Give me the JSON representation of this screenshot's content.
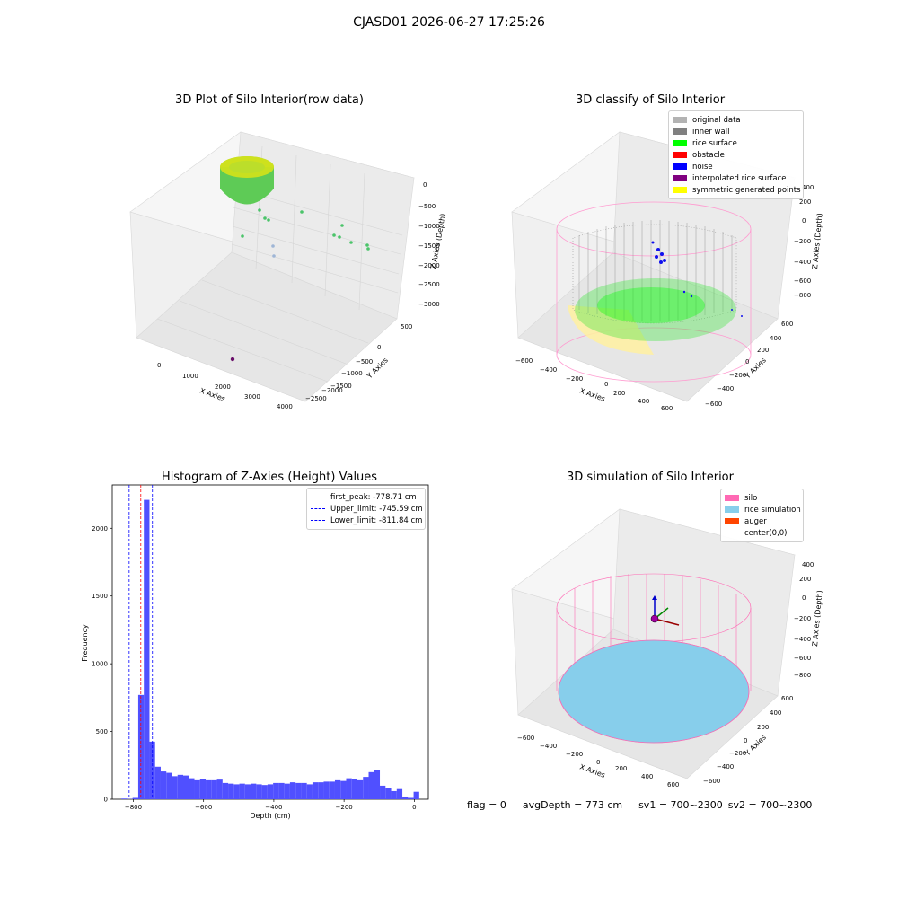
{
  "suptitle": "CJASD01 2026-06-27 17:25:26",
  "footer": {
    "flag": "flag = 0",
    "avg": "avgDepth = 773 cm",
    "sv1": "sv1 = 700~2300",
    "sv2": "sv2 = 700~2300"
  },
  "panels": {
    "raw": {
      "title": "3D Plot of Silo Interior(row data)",
      "xlabel": "X Axies",
      "ylabel": "Y Axies",
      "zlabel": "Z Axies (Depth)",
      "xticks": [
        "0",
        "1000",
        "2000",
        "3000",
        "4000"
      ],
      "yticks": [
        "500",
        "0",
        "−500",
        "−1000",
        "−1500",
        "−2000",
        "−2500"
      ],
      "zticks": [
        "0",
        "−500",
        "−1000",
        "−1500",
        "−2000",
        "−2500",
        "−3000"
      ]
    },
    "classify": {
      "title": "3D classify of Silo Interior",
      "xlabel": "X Axies",
      "ylabel": "Y Axies",
      "zlabel": "Z Axies (Depth)",
      "xticks": [
        "−600",
        "−400",
        "−200",
        "0",
        "200",
        "400",
        "600"
      ],
      "yticks": [
        "600",
        "400",
        "200",
        "0",
        "−200",
        "−400",
        "−600"
      ],
      "zticks": [
        "400",
        "200",
        "0",
        "−200",
        "−400",
        "−600",
        "−800"
      ],
      "legend": [
        {
          "label": "original data",
          "color": "#b3b3b3"
        },
        {
          "label": "inner wall",
          "color": "#808080"
        },
        {
          "label": "rice surface",
          "color": "#00ff00"
        },
        {
          "label": "obstacle",
          "color": "#ff0000"
        },
        {
          "label": "noise",
          "color": "#0000ff"
        },
        {
          "label": "interpolated rice surface",
          "color": "#800080"
        },
        {
          "label": "symmetric generated points",
          "color": "#ffff00"
        }
      ]
    },
    "simulation": {
      "title": "3D simulation of Silo Interior",
      "xlabel": "X Axies",
      "ylabel": "Y Axies",
      "zlabel": "Z Axies (Depth)",
      "xticks": [
        "−600",
        "−400",
        "−200",
        "0",
        "200",
        "400",
        "600"
      ],
      "yticks": [
        "600",
        "400",
        "200",
        "0",
        "−200",
        "−400",
        "−600"
      ],
      "zticks": [
        "400",
        "200",
        "0",
        "−200",
        "−400",
        "−600",
        "−800"
      ],
      "legend": [
        {
          "label": "silo",
          "color": "#ff69b4"
        },
        {
          "label": "rice simulation",
          "color": "#87ceeb"
        },
        {
          "label": "auger",
          "color": "#ff4500"
        },
        {
          "label": "center(0,0)",
          "color": ""
        }
      ]
    }
  },
  "chart_data": {
    "type": "bar",
    "title": "Histogram of Z-Axies (Height) Values",
    "xlabel": "Depth (cm)",
    "ylabel": "Frequency",
    "xlim": [
      -860,
      40
    ],
    "ylim": [
      0,
      2320
    ],
    "xticks": [
      -800,
      -600,
      -400,
      -200,
      0
    ],
    "yticks": [
      0,
      500,
      1000,
      1500,
      2000
    ],
    "bar_color": "#5050ff",
    "bin_width": 16,
    "bins_start": [
      -834,
      -818,
      -802,
      -786,
      -770,
      -754,
      -738,
      -722,
      -706,
      -690,
      -674,
      -658,
      -642,
      -626,
      -610,
      -594,
      -578,
      -562,
      -546,
      -530,
      -514,
      -498,
      -482,
      -466,
      -450,
      -434,
      -418,
      -402,
      -386,
      -370,
      -354,
      -338,
      -322,
      -306,
      -290,
      -274,
      -258,
      -242,
      -226,
      -210,
      -194,
      -178,
      -162,
      -146,
      -130,
      -114,
      -98,
      -82,
      -66,
      -50,
      -34,
      -18,
      -2
    ],
    "values": [
      5,
      2,
      10,
      770,
      2210,
      425,
      240,
      205,
      195,
      170,
      180,
      175,
      155,
      140,
      150,
      140,
      140,
      145,
      120,
      115,
      110,
      115,
      110,
      115,
      110,
      105,
      110,
      120,
      120,
      115,
      125,
      120,
      120,
      110,
      125,
      125,
      130,
      130,
      140,
      135,
      155,
      150,
      140,
      165,
      200,
      215,
      100,
      85,
      60,
      75,
      20,
      10,
      55
    ],
    "vlines": [
      {
        "label": "first_peak: -778.71 cm",
        "x": -778.71,
        "color": "#ff0000"
      },
      {
        "label": "Upper_limit: -745.59 cm",
        "x": -745.59,
        "color": "#0000ff"
      },
      {
        "label": "Lower_limit: -811.84 cm",
        "x": -811.84,
        "color": "#0000ff"
      }
    ]
  }
}
